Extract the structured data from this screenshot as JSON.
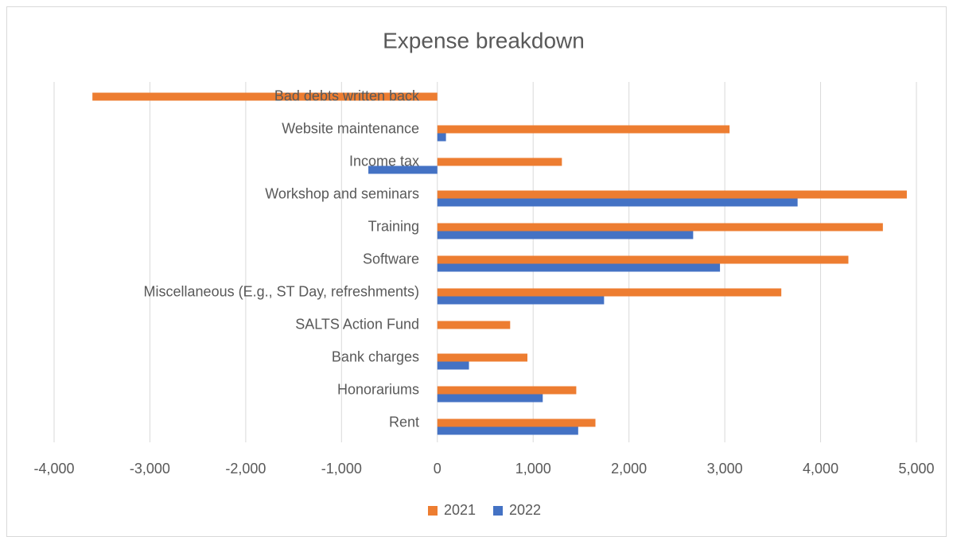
{
  "chart_data": {
    "type": "hbar",
    "title": "Expense breakdown",
    "categories": [
      "Bad debts written back",
      "Website maintenance",
      "Income tax",
      "Workshop and seminars",
      "Training",
      "Software",
      "Miscellaneous (E.g., ST Day, refreshments)",
      "SALTS Action Fund",
      "Bank charges",
      "Honorariums",
      "Rent"
    ],
    "series": [
      {
        "name": "2021",
        "color": "#ed7d31",
        "values": [
          -3600,
          3050,
          1300,
          4900,
          4650,
          4290,
          3590,
          760,
          940,
          1450,
          1650
        ]
      },
      {
        "name": "2022",
        "color": "#4472c4",
        "values": [
          0,
          90,
          -720,
          3760,
          2670,
          2950,
          1740,
          0,
          330,
          1100,
          1470
        ]
      }
    ],
    "xlim": [
      -4000,
      5000
    ],
    "xticks": [
      {
        "value": -4000,
        "label": "-4,000"
      },
      {
        "value": -3000,
        "label": "-3,000"
      },
      {
        "value": -2000,
        "label": "-2,000"
      },
      {
        "value": -1000,
        "label": "-1,000"
      },
      0,
      {
        "value": 1000,
        "label": "1,000"
      },
      {
        "value": 2000,
        "label": "2,000"
      },
      {
        "value": 3000,
        "label": "3,000"
      },
      {
        "value": 4000,
        "label": "4,000"
      },
      {
        "value": 5000,
        "label": "5,000"
      }
    ],
    "grid": true,
    "legend": "bottom"
  }
}
